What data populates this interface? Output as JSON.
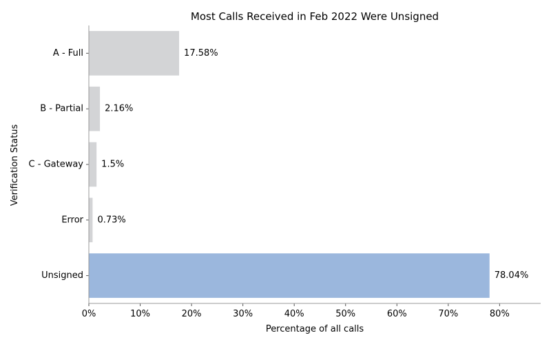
{
  "chart_data": {
    "type": "bar",
    "orientation": "horizontal",
    "title": "Most Calls Received in Feb 2022 Were Unsigned",
    "xlabel": "Percentage of all calls",
    "ylabel": "Verification Status",
    "categories": [
      "A - Full",
      "B - Partial",
      "C - Gateway",
      "Error",
      "Unsigned"
    ],
    "values": [
      17.58,
      2.16,
      1.5,
      0.73,
      78.04
    ],
    "data_labels": [
      "17.58%",
      "2.16%",
      "1.5%",
      "0.73%",
      "78.04%"
    ],
    "xlim": [
      0,
      88
    ],
    "xticks": [
      0,
      10,
      20,
      30,
      40,
      50,
      60,
      70,
      80
    ],
    "xtick_labels": [
      "0%",
      "10%",
      "20%",
      "30%",
      "40%",
      "50%",
      "60%",
      "70%",
      "80%"
    ],
    "highlight_category": "Unsigned",
    "colors": {
      "default": "#d3d4d6",
      "highlight": "#9bb7dd"
    },
    "grid": false,
    "legend": "none"
  }
}
